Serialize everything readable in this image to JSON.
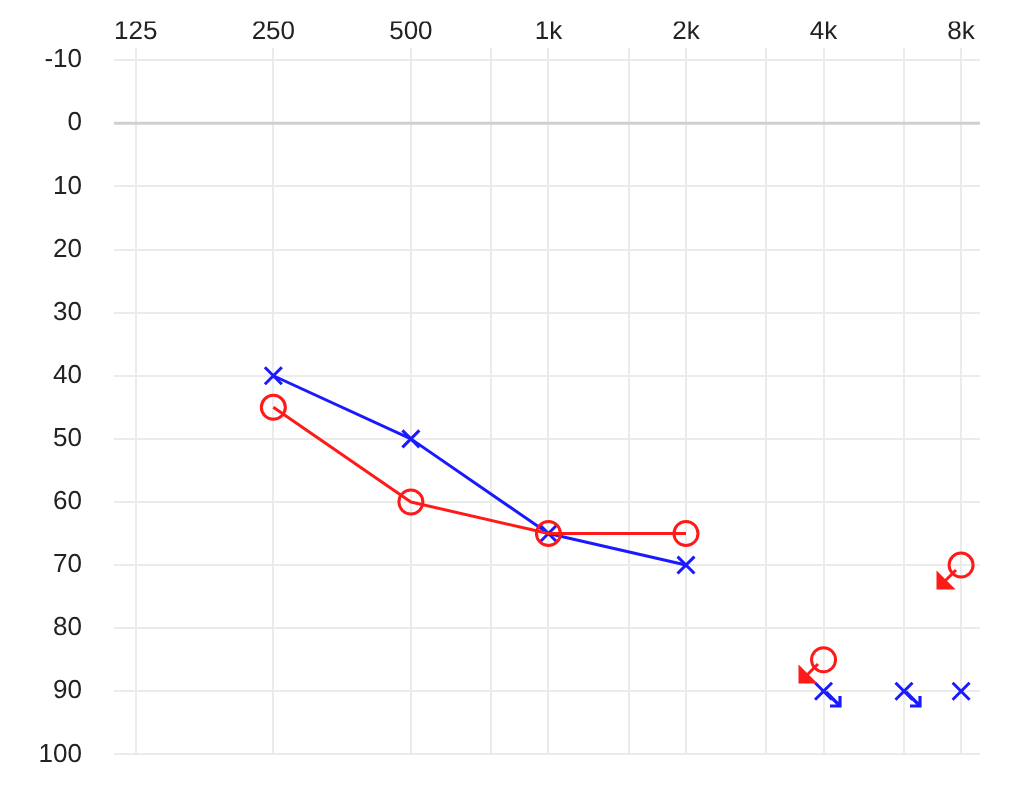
{
  "chart_data": {
    "type": "line",
    "series": [
      {
        "color": "#ff1a1a",
        "marker": "circle",
        "x": [
          250,
          500,
          1000,
          2000
        ],
        "values": [
          45,
          60,
          65,
          65
        ]
      },
      {
        "type": "scatter",
        "color": "#ff1a1a",
        "marker": "circle",
        "x": [
          4000,
          8000
        ],
        "values": [
          85,
          70
        ]
      },
      {
        "color": "#1a1aff",
        "marker": "cross",
        "x": [
          250,
          500,
          1000,
          2000
        ],
        "values": [
          40,
          50,
          65,
          70
        ]
      },
      {
        "type": "scatter",
        "color": "#1a1aff",
        "marker": "cross",
        "x": [
          4000,
          6000,
          8000
        ],
        "values": [
          90,
          90,
          90
        ]
      }
    ],
    "log": "x",
    "xlim": [
      112,
      8800
    ],
    "xticks": [
      125,
      250,
      500,
      {
        "value": 750,
        "label": null
      },
      {
        "value": 1000,
        "label": "1k"
      },
      {
        "value": 1500,
        "label": null
      },
      {
        "value": 2000,
        "label": "2k"
      },
      {
        "value": 3000,
        "label": null
      },
      {
        "value": 4000,
        "label": "4k"
      },
      {
        "value": 6000,
        "label": null
      },
      {
        "value": 8000,
        "label": "8k"
      }
    ],
    "ylim": [
      100,
      -12
    ],
    "yticks": [
      -10,
      0,
      10,
      20,
      30,
      40,
      50,
      60,
      70,
      80,
      90,
      100
    ],
    "ref_lines": [
      {
        "axis": "y",
        "value": 0,
        "color": "#d0d0d0"
      }
    ],
    "grid": true,
    "legend": false
  }
}
